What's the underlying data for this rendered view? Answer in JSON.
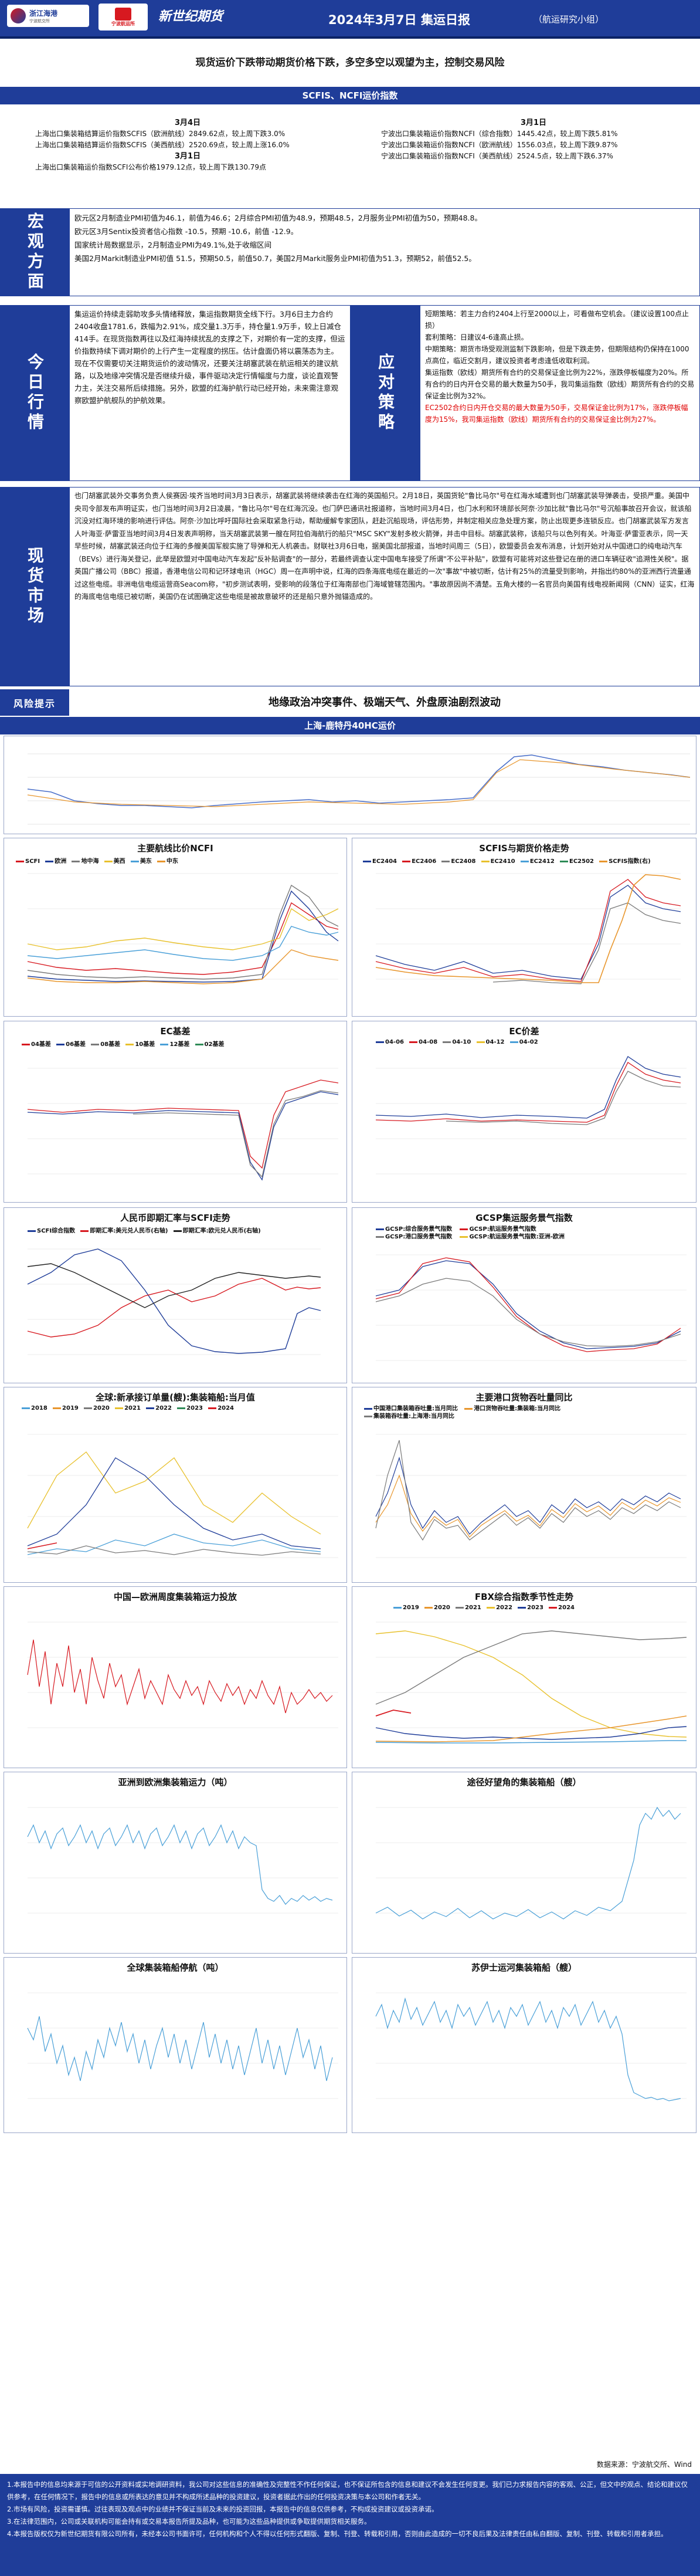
{
  "header": {
    "logo1_name": "浙江海港",
    "logo1_sub": "宁波航交所",
    "logo2_sub": "宁波航运所",
    "logo3_text": "新世纪期货",
    "title": "2024年3月7日 集运日报",
    "subtitle": "（航运研究小组）"
  },
  "banner": "现货运价下跌带动期货价格下跌，多空多空以观望为主，控制交易风险",
  "section1_title": "SCFIS、NCFI运价指数",
  "index_left": {
    "date": "3月4日",
    "line1": "上海出口集装箱结算运价指数SCFIS（欧洲航线）2849.62点，较上周下跌3.0%",
    "line2": "上海出口集装箱结算运价指数SCFIS（美西航线）2520.69点，较上周上涨16.0%",
    "date2": "3月1日",
    "line3": "上海出口集装箱运价指数SCFI公布价格1979.12点，较上周下跌130.79点"
  },
  "index_right": {
    "date": "3月1日",
    "line1": "宁波出口集装箱运价指数NCFI（综合指数）1445.42点，较上周下跌5.81%",
    "line2": "宁波出口集装箱运价指数NCFI（欧洲航线）1556.03点，较上周下跌9.87%",
    "line3": "宁波出口集装箱运价指数NCFI（美西航线）2524.5点，较上周下跌6.37%"
  },
  "macro": {
    "label": "宏观方面",
    "lines": [
      "欧元区2月制造业PMI初值为46.1，前值为46.6；2月综合PMI初值为48.9，预期48.5，2月服务业PMI初值为50，预期48.8。",
      "欧元区3月Sentix投资者信心指数 -10.5，预期 -10.6，前值 -12.9。",
      "国家统计局数据显示，2月制造业PMI为49.1%,处于收缩区间",
      "美国2月Markit制造业PMI初值 51.5，预期50.5，前值50.7，美国2月Markit服务业PMI初值为51.3，预期52，前值52.5。"
    ]
  },
  "today": {
    "label": "今日行情",
    "text": "集运运价持续走弱助攻多头情绪释放，集运指数期货全线下行。3月6日主力合约2404收盘1781.6，跌幅为2.91%，成交量1.3万手，持仓量1.9万手，较上日减仓414手。在现货指数再往以及红海持续扰乱的支撑之下，对期价有一定的支撑，但运价指数持续下调对期价的上行产生一定程度的拐压。估计盘面仍将以震荡态为主。现在不仅需要切关注期货运价的波动情况，还要关注胡塞武装在航运相关的建议航路，以及地缘冲突情况是否继续升级，事件驱动决定行情幅度与力度，谈论直观警力主，关注交易所后续措施。另外，欧盟的红海护航行动已经开始，未来需注意观察欧盟护航舰队的护航效果。"
  },
  "strategy": {
    "label": "应对策略",
    "short": "短期策略：若主力合约2404上行至2000以上，可看做布空机会。（建议设置100点止损）",
    "arb": "套利策略：日建议4-6逢高止损。",
    "mid": "中期策略：期货市场受观测监制下跌影响，但是下跌走势，但期限结构仍保持在1000点高位，临近交割月，建议投资者考虑逢低收取利润。",
    "margin_title": "集运指数（欧线）期货所有合约的交易保证金比例为22%，涨跌停板幅度为20%。所有合约的日内开仓交易的最大数量为50手，我司集运指数（欧线）期货所有合约的交易保证金比例为32%。",
    "red_text": "EC2502合约日内开仓交易的最大数量为50手，交易保证金比例为17%，涨跌停板幅度为15%，我司集运指数（欧线）期货所有合约的交易保证金比例为27%。"
  },
  "spot": {
    "label": "现货市场",
    "text": "也门胡塞武装外交事务负责人侯赛因·埃齐当地时间3月3日表示，胡塞武装将继续袭击在红海的英国船只。2月18日，英国货轮\"鲁比马尔\"号在红海水域遭到也门胡塞武装导弹袭击，受损严重。美国中央司令部发布声明证实，也门当地时间3月2日凌晨，\"鲁比马尔\"号在红海沉没。也门萨巴通讯社报道称，当地时间3月4日，也门水利和环境部长阿奈·沙加比就\"鲁比马尔\"号沉船事故召开会议，就该船沉没对红海环境的影响进行评估。阿奈·沙加比呼吁国际社会采取紧急行动，帮助缓解专家团队，赶赴沉船现场，评估形势，并制定相关应急处理方案，防止出现更多连锁反应。也门胡塞武装军方发言人叶海亚·萨雷亚当地时间3月4日发表声明称，当天胡塞武装第一艘在阿拉伯海航行的船只\"MSC SKY\"发射多枚火箭弹，并击中目标。胡塞武装称，该船只与以色列有关。叶海亚·萨雷亚表示，同一天早些时候，胡塞武装还向位于红海的多艘美国军舰实施了导弹和无人机袭击。财联社3月6日电，据美国北部报道，当地时间周三（5日），欧盟委员会发布消息，计划开始对从中国进口的纯电动汽车（BEVs）进行海关登记，此举是欧盟对中国电动汽车发起\"反补贴调查\"的一部分，若最终调查认定中国电车接受了所谓\"不公平补贴\"，欧盟有可能将对这些登记在册的进口车辆征收\"追溯性关税\"。据英国广播公司（BBC）报道，香港电信公司和记环球电讯（HGC）周一在声明中说，红海的四条海底电缆在最近的一次\"事故\"中被切断，估计有25%的流量受到影响，并指出约80%的亚洲西行流量通过这些电缆。非洲电信电缆运营商Seacom称，\"初步测试表明，受影响的段落位于红海南部也门海域管辖范围内。\"事故原因尚不清楚。五角大楼的一名官员向美国有线电视新闻网（CNN）证实，红海的海底电信电缆已被切断，美国仍在试图确定这些电缆是被故意破坏的还是船只意外抛锚造成的。"
  },
  "risk": {
    "label": "风险提示",
    "text": "地缘政治冲突事件、极端天气、外盘原油剧烈波动"
  },
  "section2_title": "上海-鹿特丹40HC运价",
  "charts": {
    "c2_title": "主要航线比价NCFI",
    "c2_legend": [
      "SCFI",
      "欧洲",
      "地中海",
      "美西",
      "美东",
      "中东"
    ],
    "c3_title": "SCFIS与期货价格走势",
    "c3_legend": [
      "EC2404",
      "EC2406",
      "EC2408",
      "EC2410",
      "EC2412",
      "EC2502",
      "SCFIS指数(右)"
    ],
    "c4_title": "EC基差",
    "c4_legend": [
      "04基差",
      "06基差",
      "08基差",
      "10基差",
      "12基差",
      "02基差"
    ],
    "c5_title": "EC价差",
    "c5_legend": [
      "04-06",
      "04-08",
      "04-10",
      "04-12",
      "04-02"
    ],
    "c6_title": "人民币即期汇率与SCFI走势",
    "c6_legend": [
      "SCFI综合指数",
      "即期汇率:美元兑人民币(右轴)",
      "即期汇率:欧元兑人民币(右轴)"
    ],
    "c7_title": "GCSP集运服务景气指数",
    "c7_legend": [
      "GCSP:综合服务景气指数",
      "GCSP:航运服务景气指数",
      "GCSP:港口服务景气指数",
      "GCSP:航运服务景气指数:亚洲-欧洲"
    ],
    "c8_title": "全球:新承接订单量(艘):集装箱船:当月值",
    "c8_legend": [
      "2018",
      "2019",
      "2020",
      "2021",
      "2022",
      "2023",
      "2024"
    ],
    "c9_title": "主要港口货物吞吐量同比",
    "c9_legend": [
      "中国港口集装箱吞吐量:当月同比",
      "港口货物吞吐量:集装箱:当月同比",
      "集装箱吞吐量:上海港:当月同比"
    ],
    "c10_title": "中国—欧洲周度集装箱运力投放",
    "c11_title": "FBX综合指数季节性走势",
    "c11_legend": [
      "2019",
      "2020",
      "2021",
      "2022",
      "2023",
      "2024"
    ],
    "c12_title": "亚洲到欧洲集装箱运力（吨）",
    "c13_title": "途径好望角的集装箱船（艘）",
    "c14_title": "全球集装箱船停航（吨）",
    "c15_title": "苏伊士运河集装箱船（艘）"
  },
  "chart_data": [
    {
      "type": "line",
      "title": "上海-鹿特丹40HC运价",
      "x": [
        "2023-09",
        "2023-10",
        "2023-11",
        "2023-12",
        "2024-01",
        "2024-02",
        "2024-03"
      ],
      "series": [
        {
          "name": "",
          "values": [
            1650,
            1100,
            1150,
            1300,
            4300,
            4600,
            3850
          ]
        }
      ]
    },
    {
      "type": "line",
      "title": "主要航线比价NCFI",
      "series": [
        {
          "name": "欧洲",
          "values": [
            700,
            650,
            600,
            580,
            600,
            620,
            600,
            590,
            2200,
            2800,
            2400,
            1600
          ]
        },
        {
          "name": "地中海",
          "values": [
            900,
            820,
            780,
            760,
            780,
            790,
            770,
            760,
            2400,
            3200,
            2700,
            1900
          ]
        },
        {
          "name": "美西",
          "values": [
            1400,
            1300,
            1350,
            1450,
            1600,
            1500,
            1400,
            1350,
            1600,
            2700,
            2300,
            2500
          ]
        },
        {
          "name": "美东",
          "values": [
            1200,
            1150,
            1180,
            1250,
            1300,
            1280,
            1220,
            1190,
            1500,
            2000,
            1800,
            1700
          ]
        }
      ]
    },
    {
      "type": "line",
      "title": "SCFIS与期货价格走势",
      "series": [
        {
          "name": "EC2404",
          "values": [
            800,
            750,
            760,
            780,
            700,
            650,
            1900,
            2600,
            2200,
            1900,
            1800
          ]
        },
        {
          "name": "SCFIS指数(右)",
          "values": [
            850,
            820,
            800,
            780,
            750,
            700,
            2000,
            3200,
            3000,
            2900,
            2850
          ]
        }
      ]
    }
  ],
  "source": "数据来源：宁波航交所、Wind",
  "footer_lines": [
    "1.本报告中的信息均来源于可信的公开资料或实地调研资料，我公司对这些信息的准确性及完整性不作任何保证，也不保证所包含的信息和建议不会发生任何变更。我们已力求报告内容的客观、公正，但文中的观点、结论和建议仅供参考，在任何情况下，报告中的信息或所表达的意见并不构成所述品种的投资建议，投资者据此作出的任何投资决策与本公司和作者无关。",
    "2.市场有风险，投资需谨慎。过往表现及观点中的业绩并不保证当前及未来的投资回报，本报告中的信息仅供参考，不构成投资建议或投资承诺。",
    "3.在法律范围内，公司或关联机构可能会持有或交易本报告所提及品种，也可能为这些品种提供或争取提供期货相关服务。",
    "4.本报告版权仅为新世纪期货有限公司所有，未经本公司书面许可，任何机构和个人不得以任何形式翻版、复制、刊登、转载和引用，否则由此造成的一切不良后果及法律责任由私自翻版、复制、刊登、转载和引用者承担。"
  ]
}
